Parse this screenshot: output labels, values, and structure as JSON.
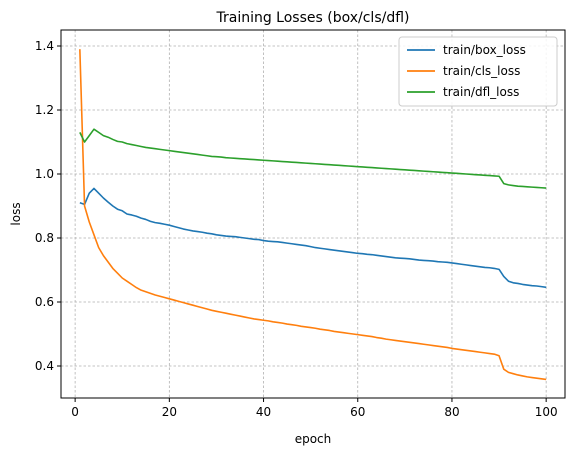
{
  "chart_data": {
    "type": "line",
    "title": "Training Losses (box/cls/dfl)",
    "xlabel": "epoch",
    "ylabel": "loss",
    "xlim": [
      -3,
      104
    ],
    "ylim": [
      0.3,
      1.45
    ],
    "xticks": [
      0,
      20,
      40,
      60,
      80,
      100
    ],
    "yticks": [
      0.4,
      0.6,
      0.8,
      1.0,
      1.2,
      1.4
    ],
    "grid": true,
    "legend_position": "top-right",
    "series": [
      {
        "name": "train/box_loss",
        "color": "#1f77b4",
        "x": [
          1,
          2,
          3,
          4,
          5,
          6,
          7,
          8,
          9,
          10,
          11,
          12,
          13,
          14,
          15,
          16,
          17,
          18,
          19,
          20,
          21,
          22,
          23,
          24,
          25,
          26,
          27,
          28,
          29,
          30,
          31,
          32,
          33,
          34,
          35,
          36,
          37,
          38,
          39,
          40,
          41,
          42,
          43,
          44,
          45,
          46,
          47,
          48,
          49,
          50,
          51,
          52,
          53,
          54,
          55,
          56,
          57,
          58,
          59,
          60,
          61,
          62,
          63,
          64,
          65,
          66,
          67,
          68,
          69,
          70,
          71,
          72,
          73,
          74,
          75,
          76,
          77,
          78,
          79,
          80,
          81,
          82,
          83,
          84,
          85,
          86,
          87,
          88,
          89,
          90,
          91,
          92,
          93,
          94,
          95,
          96,
          97,
          98,
          99,
          100
        ],
        "values": [
          0.91,
          0.905,
          0.94,
          0.955,
          0.94,
          0.925,
          0.912,
          0.9,
          0.89,
          0.885,
          0.875,
          0.872,
          0.868,
          0.862,
          0.858,
          0.852,
          0.848,
          0.846,
          0.843,
          0.84,
          0.836,
          0.832,
          0.828,
          0.825,
          0.822,
          0.82,
          0.818,
          0.815,
          0.813,
          0.81,
          0.808,
          0.806,
          0.805,
          0.804,
          0.802,
          0.8,
          0.798,
          0.796,
          0.795,
          0.792,
          0.79,
          0.789,
          0.788,
          0.786,
          0.784,
          0.782,
          0.78,
          0.778,
          0.776,
          0.773,
          0.77,
          0.768,
          0.766,
          0.764,
          0.762,
          0.76,
          0.758,
          0.756,
          0.754,
          0.752,
          0.751,
          0.749,
          0.748,
          0.746,
          0.744,
          0.742,
          0.74,
          0.738,
          0.737,
          0.736,
          0.735,
          0.733,
          0.731,
          0.73,
          0.729,
          0.728,
          0.726,
          0.725,
          0.724,
          0.722,
          0.72,
          0.718,
          0.716,
          0.714,
          0.712,
          0.71,
          0.708,
          0.707,
          0.705,
          0.702,
          0.68,
          0.665,
          0.66,
          0.658,
          0.655,
          0.653,
          0.651,
          0.65,
          0.648,
          0.646
        ]
      },
      {
        "name": "train/cls_loss",
        "color": "#ff7f0e",
        "x": [
          1,
          2,
          3,
          4,
          5,
          6,
          7,
          8,
          9,
          10,
          11,
          12,
          13,
          14,
          15,
          16,
          17,
          18,
          19,
          20,
          21,
          22,
          23,
          24,
          25,
          26,
          27,
          28,
          29,
          30,
          31,
          32,
          33,
          34,
          35,
          36,
          37,
          38,
          39,
          40,
          41,
          42,
          43,
          44,
          45,
          46,
          47,
          48,
          49,
          50,
          51,
          52,
          53,
          54,
          55,
          56,
          57,
          58,
          59,
          60,
          61,
          62,
          63,
          64,
          65,
          66,
          67,
          68,
          69,
          70,
          71,
          72,
          73,
          74,
          75,
          76,
          77,
          78,
          79,
          80,
          81,
          82,
          83,
          84,
          85,
          86,
          87,
          88,
          89,
          90,
          91,
          92,
          93,
          94,
          95,
          96,
          97,
          98,
          99,
          100
        ],
        "values": [
          1.39,
          0.9,
          0.85,
          0.81,
          0.77,
          0.745,
          0.725,
          0.705,
          0.69,
          0.675,
          0.665,
          0.655,
          0.645,
          0.637,
          0.632,
          0.627,
          0.622,
          0.618,
          0.614,
          0.61,
          0.606,
          0.602,
          0.598,
          0.594,
          0.59,
          0.586,
          0.582,
          0.578,
          0.574,
          0.571,
          0.568,
          0.565,
          0.562,
          0.559,
          0.556,
          0.553,
          0.55,
          0.547,
          0.545,
          0.543,
          0.541,
          0.538,
          0.536,
          0.534,
          0.531,
          0.529,
          0.527,
          0.524,
          0.522,
          0.52,
          0.518,
          0.515,
          0.513,
          0.511,
          0.508,
          0.506,
          0.504,
          0.502,
          0.5,
          0.498,
          0.496,
          0.494,
          0.492,
          0.489,
          0.487,
          0.484,
          0.482,
          0.48,
          0.478,
          0.476,
          0.474,
          0.472,
          0.47,
          0.468,
          0.466,
          0.464,
          0.462,
          0.46,
          0.458,
          0.455,
          0.453,
          0.451,
          0.449,
          0.447,
          0.445,
          0.443,
          0.441,
          0.439,
          0.437,
          0.432,
          0.39,
          0.38,
          0.376,
          0.372,
          0.369,
          0.366,
          0.364,
          0.362,
          0.36,
          0.358
        ]
      },
      {
        "name": "train/dfl_loss",
        "color": "#2ca02c",
        "x": [
          1,
          2,
          3,
          4,
          5,
          6,
          7,
          8,
          9,
          10,
          11,
          12,
          13,
          14,
          15,
          16,
          17,
          18,
          19,
          20,
          21,
          22,
          23,
          24,
          25,
          26,
          27,
          28,
          29,
          30,
          31,
          32,
          33,
          34,
          35,
          36,
          37,
          38,
          39,
          40,
          41,
          42,
          43,
          44,
          45,
          46,
          47,
          48,
          49,
          50,
          51,
          52,
          53,
          54,
          55,
          56,
          57,
          58,
          59,
          60,
          61,
          62,
          63,
          64,
          65,
          66,
          67,
          68,
          69,
          70,
          71,
          72,
          73,
          74,
          75,
          76,
          77,
          78,
          79,
          80,
          81,
          82,
          83,
          84,
          85,
          86,
          87,
          88,
          89,
          90,
          91,
          92,
          93,
          94,
          95,
          96,
          97,
          98,
          99,
          100
        ],
        "values": [
          1.13,
          1.1,
          1.12,
          1.14,
          1.13,
          1.12,
          1.115,
          1.108,
          1.102,
          1.1,
          1.095,
          1.092,
          1.089,
          1.086,
          1.083,
          1.081,
          1.079,
          1.077,
          1.075,
          1.073,
          1.071,
          1.069,
          1.067,
          1.065,
          1.063,
          1.061,
          1.059,
          1.057,
          1.055,
          1.054,
          1.053,
          1.051,
          1.05,
          1.049,
          1.048,
          1.047,
          1.046,
          1.045,
          1.044,
          1.043,
          1.042,
          1.041,
          1.04,
          1.039,
          1.038,
          1.037,
          1.036,
          1.035,
          1.034,
          1.033,
          1.032,
          1.031,
          1.03,
          1.029,
          1.028,
          1.027,
          1.026,
          1.025,
          1.024,
          1.023,
          1.022,
          1.021,
          1.02,
          1.019,
          1.018,
          1.017,
          1.016,
          1.015,
          1.014,
          1.013,
          1.012,
          1.011,
          1.01,
          1.009,
          1.008,
          1.007,
          1.006,
          1.005,
          1.004,
          1.003,
          1.002,
          1.001,
          1.0,
          0.999,
          0.998,
          0.997,
          0.996,
          0.995,
          0.994,
          0.993,
          0.97,
          0.966,
          0.964,
          0.962,
          0.961,
          0.96,
          0.959,
          0.958,
          0.957,
          0.956
        ]
      }
    ]
  }
}
